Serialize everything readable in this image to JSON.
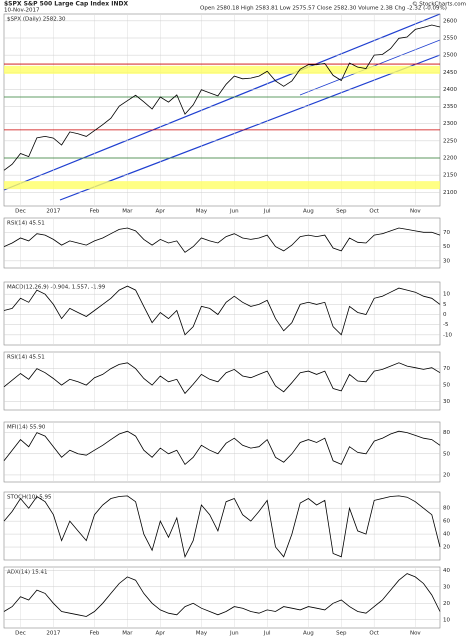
{
  "chart_data": [
    {
      "type": "line",
      "title": "$SPX S&P 500 Large Cap Index INDX",
      "subtitle": "10-Nov-2017",
      "info": "Open 2580.18 High 2583.81 Low 2575.57 Close 2582.30 Volume 2.3B Chg -2.32 (-0.09%)",
      "source": "© StockCharts.com",
      "series": [
        {
          "name": "$SPX (Daily) 2582.30",
          "color": "#000000",
          "values": [
            2164,
            2182,
            2213,
            2204,
            2259,
            2263,
            2258,
            2238,
            2276,
            2271,
            2263,
            2280,
            2297,
            2316,
            2351,
            2367,
            2383,
            2364,
            2343,
            2378,
            2363,
            2384,
            2328,
            2355,
            2399,
            2390,
            2381,
            2415,
            2439,
            2431,
            2433,
            2439,
            2453,
            2425,
            2409,
            2425,
            2459,
            2472,
            2472,
            2476,
            2441,
            2426,
            2477,
            2465,
            2461,
            2500,
            2502,
            2519,
            2549,
            2553,
            2575,
            2581,
            2588,
            2582
          ]
        }
      ],
      "levels": [
        {
          "value": 2457,
          "color": "#ffff66"
        },
        {
          "value": 2121,
          "color": "#ffff66"
        },
        {
          "value": 2474,
          "color": "#cc0000"
        },
        {
          "value": 2282,
          "color": "#cc0000"
        },
        {
          "value": 2378,
          "color": "#2e7d32"
        },
        {
          "value": 2200,
          "color": "#2e7d32"
        }
      ],
      "xlim": [
        0,
        53
      ],
      "xticks": [
        {
          "value": 2,
          "label": "Dec"
        },
        {
          "value": 6,
          "label": "2017"
        },
        {
          "value": 11,
          "label": "Feb"
        },
        {
          "value": 15,
          "label": "Mar"
        },
        {
          "value": 19,
          "label": "Apr"
        },
        {
          "value": 24,
          "label": "May"
        },
        {
          "value": 28,
          "label": "Jun"
        },
        {
          "value": 32,
          "label": "Jul"
        },
        {
          "value": 37,
          "label": "Aug"
        },
        {
          "value": 41,
          "label": "Sep"
        },
        {
          "value": 45,
          "label": "Oct"
        },
        {
          "value": 50,
          "label": "Nov"
        }
      ],
      "ylim": [
        2060,
        2620
      ],
      "yticks": [
        2100,
        2150,
        2200,
        2250,
        2300,
        2350,
        2400,
        2450,
        2500,
        2550,
        2600
      ]
    },
    {
      "type": "line",
      "title": "RSI(14) 45.51",
      "series": [
        {
          "name": "RSI",
          "color": "#000000",
          "values": [
            50,
            55,
            62,
            58,
            68,
            66,
            60,
            52,
            58,
            55,
            52,
            58,
            62,
            68,
            74,
            76,
            72,
            60,
            52,
            60,
            55,
            58,
            42,
            50,
            62,
            58,
            55,
            64,
            68,
            62,
            60,
            62,
            66,
            50,
            44,
            52,
            64,
            66,
            64,
            66,
            48,
            44,
            62,
            56,
            55,
            66,
            68,
            72,
            76,
            74,
            72,
            70,
            70,
            66
          ]
        }
      ],
      "ylim": [
        20,
        90
      ],
      "yticks": [
        30,
        50,
        70
      ]
    },
    {
      "type": "line",
      "title": "MACD(12,26,9) -0.904, 1.557, -1.99",
      "series": [
        {
          "name": "MACD",
          "color": "#000000",
          "values": [
            2,
            3,
            8,
            6,
            12,
            10,
            5,
            -2,
            3,
            1,
            -1,
            2,
            5,
            8,
            12,
            14,
            12,
            4,
            -4,
            1,
            -2,
            2,
            -10,
            -6,
            4,
            3,
            0,
            6,
            9,
            6,
            4,
            5,
            7,
            -2,
            -8,
            -4,
            5,
            6,
            5,
            6,
            -6,
            -10,
            4,
            1,
            0,
            8,
            9,
            11,
            13,
            12,
            11,
            9,
            8,
            5
          ]
        }
      ],
      "ylim": [
        -15,
        16
      ],
      "yticks": [
        -10,
        -5,
        0,
        5,
        10
      ]
    },
    {
      "type": "line",
      "title": "RSI(14) 45.51",
      "series": [
        {
          "name": "RSI",
          "color": "#000000",
          "values": [
            48,
            56,
            64,
            57,
            70,
            65,
            58,
            50,
            57,
            54,
            50,
            59,
            63,
            70,
            75,
            77,
            70,
            58,
            50,
            61,
            54,
            57,
            40,
            51,
            63,
            57,
            54,
            65,
            69,
            61,
            59,
            63,
            67,
            49,
            42,
            53,
            65,
            67,
            63,
            67,
            46,
            43,
            63,
            55,
            54,
            67,
            69,
            73,
            77,
            73,
            71,
            69,
            71,
            65
          ]
        }
      ],
      "ylim": [
        20,
        90
      ],
      "yticks": [
        30,
        50,
        70
      ]
    },
    {
      "type": "line",
      "title": "MFI(14) 55.90",
      "series": [
        {
          "name": "MFI",
          "color": "#000000",
          "values": [
            40,
            55,
            70,
            60,
            80,
            75,
            60,
            45,
            55,
            50,
            48,
            55,
            62,
            70,
            78,
            82,
            75,
            55,
            45,
            58,
            50,
            55,
            35,
            45,
            62,
            55,
            50,
            65,
            72,
            62,
            58,
            60,
            70,
            45,
            38,
            50,
            66,
            70,
            66,
            72,
            40,
            35,
            60,
            52,
            50,
            68,
            72,
            78,
            82,
            80,
            76,
            72,
            70,
            62
          ]
        }
      ],
      "ylim": [
        10,
        95
      ],
      "yticks": [
        20,
        50,
        80
      ]
    },
    {
      "type": "line",
      "title": "STOCH(10) 5.95",
      "series": [
        {
          "name": "STOCH",
          "color": "#000000",
          "values": [
            60,
            75,
            95,
            80,
            98,
            90,
            70,
            30,
            60,
            45,
            30,
            70,
            85,
            95,
            98,
            99,
            90,
            40,
            15,
            60,
            35,
            65,
            5,
            30,
            85,
            70,
            45,
            90,
            95,
            70,
            60,
            75,
            92,
            20,
            5,
            40,
            88,
            95,
            85,
            92,
            10,
            5,
            80,
            45,
            40,
            92,
            95,
            98,
            99,
            97,
            90,
            80,
            70,
            20
          ]
        }
      ],
      "ylim": [
        0,
        105
      ],
      "yticks": [
        20,
        40,
        60,
        80
      ]
    },
    {
      "type": "line",
      "title": "ADX(14) 15.41",
      "series": [
        {
          "name": "ADX",
          "color": "#000000",
          "values": [
            15,
            18,
            24,
            22,
            28,
            26,
            20,
            15,
            14,
            13,
            12,
            15,
            20,
            26,
            32,
            36,
            34,
            26,
            20,
            16,
            14,
            13,
            18,
            20,
            17,
            15,
            13,
            15,
            18,
            17,
            15,
            14,
            16,
            15,
            18,
            17,
            16,
            18,
            17,
            16,
            20,
            22,
            18,
            15,
            14,
            18,
            22,
            28,
            34,
            38,
            36,
            32,
            25,
            15
          ]
        }
      ],
      "ylim": [
        5,
        42
      ],
      "yticks": [
        10,
        20,
        30,
        40
      ],
      "xlim": [
        0,
        53
      ],
      "xticks": [
        {
          "value": 2,
          "label": "Dec"
        },
        {
          "value": 6,
          "label": "2017"
        },
        {
          "value": 11,
          "label": "Feb"
        },
        {
          "value": 15,
          "label": "Mar"
        },
        {
          "value": 19,
          "label": "Apr"
        },
        {
          "value": 24,
          "label": "May"
        },
        {
          "value": 28,
          "label": "Jun"
        },
        {
          "value": 32,
          "label": "Jul"
        },
        {
          "value": 37,
          "label": "Aug"
        },
        {
          "value": 41,
          "label": "Sep"
        },
        {
          "value": 45,
          "label": "Oct"
        },
        {
          "value": 50,
          "label": "Nov"
        }
      ]
    }
  ]
}
